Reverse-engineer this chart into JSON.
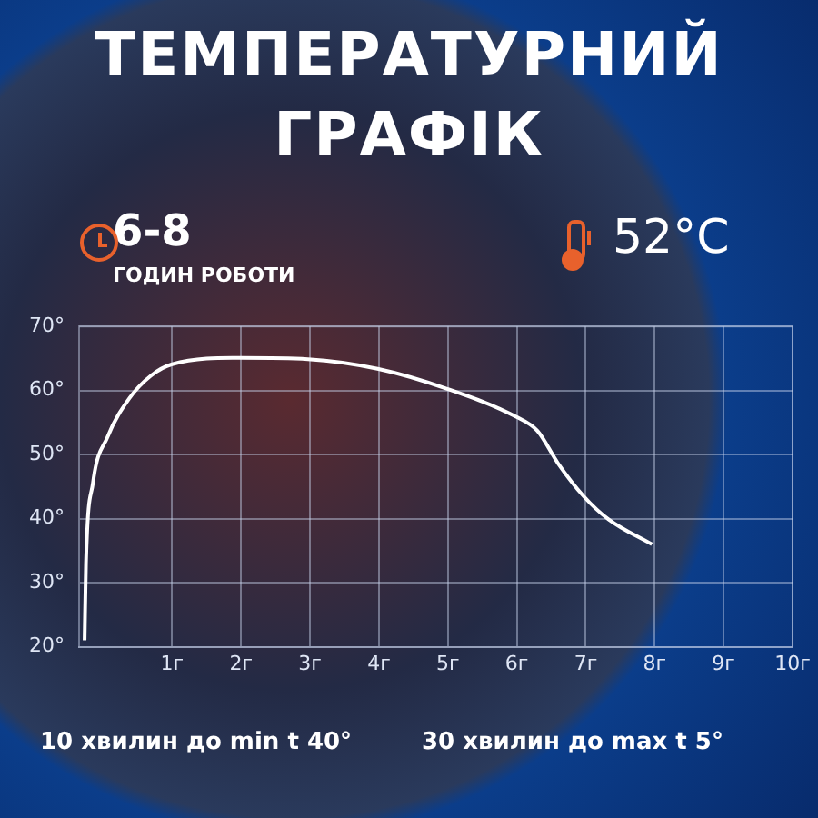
{
  "chart_data": {
    "type": "line",
    "title": "ТЕМПЕРАТУРНИЙ ГРАФІК",
    "annotations": [
      "6-8",
      "ГОДИН РОБОТИ",
      "52°C",
      "10 хвилин до min t 40°",
      "30 хвилин до max t 5°"
    ],
    "series": [
      {
        "color": "#ffffff",
        "x": [
          -0.27,
          -0.25,
          -0.15,
          0.06,
          0.38,
          0.69,
          1,
          2,
          2.97,
          3.98,
          4.98,
          5.99,
          6.3,
          6.6,
          6.97,
          7.33,
          7.96
        ],
        "values": [
          21,
          33,
          45.5,
          52.7,
          58.8,
          62.3,
          64.1,
          65.1,
          64.9,
          63.4,
          60.3,
          55.9,
          53.7,
          48.6,
          43.5,
          39.9,
          36
        ]
      }
    ],
    "xlim": [
      -0.35,
      10
    ],
    "xticks": [
      {
        "value": 1,
        "label": "1г"
      },
      {
        "value": 2,
        "label": "2г"
      },
      {
        "value": 3,
        "label": "3г"
      },
      {
        "value": 4,
        "label": "4г"
      },
      {
        "value": 5,
        "label": "5г"
      },
      {
        "value": 6,
        "label": "6г"
      },
      {
        "value": 7,
        "label": "7г"
      },
      {
        "value": 8,
        "label": "8г"
      },
      {
        "value": 9,
        "label": "9г"
      },
      {
        "value": 10,
        "label": "10г"
      }
    ],
    "ylim": [
      20,
      70
    ],
    "yticks": [
      {
        "value": 20,
        "label": "20°"
      },
      {
        "value": 30,
        "label": "30°"
      },
      {
        "value": 40,
        "label": "40°"
      },
      {
        "value": 50,
        "label": "50°"
      },
      {
        "value": 60,
        "label": "60°"
      },
      {
        "value": 70,
        "label": "70°"
      }
    ],
    "grid": true,
    "marker": "none",
    "line_style": "solid",
    "legend": false
  }
}
